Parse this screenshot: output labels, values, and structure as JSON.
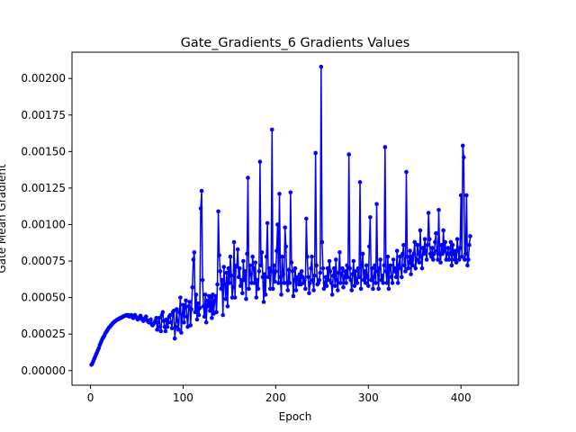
{
  "chart_data": {
    "type": "line",
    "title": "Gate_Gradients_6 Gradients Values",
    "xlabel": "Epoch",
    "ylabel": "Gate Mean Gradient",
    "xlim": [
      -20,
      462
    ],
    "ylim": [
      -0.0001,
      0.00218
    ],
    "x_ticks": [
      0,
      100,
      200,
      300,
      400
    ],
    "x_tick_labels": [
      "0",
      "100",
      "200",
      "300",
      "400"
    ],
    "y_ticks": [
      0.0,
      0.00025,
      0.0005,
      0.00075,
      0.001,
      0.00125,
      0.0015,
      0.00175,
      0.002
    ],
    "y_tick_labels": [
      "0.00000",
      "0.00025",
      "0.00050",
      "0.00075",
      "0.00100",
      "0.00125",
      "0.00150",
      "0.00175",
      "0.00200"
    ],
    "grid": false,
    "series": [
      {
        "color": "#0000ff",
        "marker": "circle",
        "x_start": 1,
        "x_step": 1,
        "values": [
          4e-05,
          5e-05,
          6.5e-05,
          8e-05,
          9.5e-05,
          0.00011,
          0.000125,
          0.00014,
          0.000155,
          0.000175,
          0.00019,
          0.000205,
          0.00022,
          0.00023,
          0.00024,
          0.000255,
          0.000265,
          0.000275,
          0.000285,
          0.000295,
          0.0003,
          0.00031,
          0.000315,
          0.000325,
          0.00033,
          0.000335,
          0.00034,
          0.000345,
          0.00035,
          0.000352,
          0.000355,
          0.00036,
          0.000362,
          0.000365,
          0.00037,
          0.000372,
          0.000375,
          0.000378,
          0.00038,
          0.000375,
          0.00038,
          0.00037,
          0.000375,
          0.00038,
          0.00037,
          0.00036,
          0.000375,
          0.00038,
          0.00037,
          0.00036,
          0.00035,
          0.000355,
          0.000365,
          0.000375,
          0.00036,
          0.00035,
          0.00034,
          0.00035,
          0.00036,
          0.00037,
          0.000345,
          0.000335,
          0.00033,
          0.00034,
          0.00035,
          0.00032,
          0.00031,
          0.00032,
          0.00033,
          0.00034,
          0.00036,
          0.00028,
          0.00033,
          0.00036,
          0.0003,
          0.00027,
          0.00038,
          0.0004,
          0.00034,
          0.0003,
          0.00027,
          0.00035,
          0.0003,
          0.00033,
          0.00037,
          0.00038,
          0.00033,
          0.00029,
          0.0004,
          0.00041,
          0.00022,
          0.0003,
          0.00042,
          0.00034,
          0.00028,
          0.0004,
          0.0005,
          0.00026,
          0.00038,
          0.00045,
          0.00033,
          0.00043,
          0.00048,
          0.00037,
          0.0003,
          0.00044,
          0.00047,
          0.00031,
          0.00042,
          0.00057,
          0.00076,
          0.00081,
          0.0004,
          0.00052,
          0.00035,
          0.00046,
          0.00038,
          0.00043,
          0.00111,
          0.00123,
          0.00062,
          0.00044,
          0.00037,
          0.00052,
          0.00033,
          0.00048,
          0.00044,
          0.00051,
          0.00041,
          0.0005,
          0.00036,
          0.00052,
          0.00039,
          0.00048,
          0.00051,
          0.0004,
          0.00059,
          0.00109,
          0.00079,
          0.00068,
          0.00056,
          0.00062,
          0.00038,
          0.00071,
          0.00059,
          0.00049,
          0.00067,
          0.00044,
          0.0007,
          0.0006,
          0.00078,
          0.00065,
          0.0005,
          0.00057,
          0.00088,
          0.0005,
          0.00071,
          0.00072,
          0.00083,
          0.00064,
          0.0007,
          0.00058,
          0.00062,
          0.00053,
          0.00075,
          0.00062,
          0.00068,
          0.00049,
          0.0008,
          0.00132,
          0.00056,
          0.00072,
          0.00066,
          0.0006,
          0.00078,
          0.0007,
          0.0006,
          0.00074,
          0.0005,
          0.00062,
          0.00056,
          0.00068,
          0.00143,
          0.00072,
          0.00081,
          0.00064,
          0.00047,
          0.00066,
          0.00052,
          0.00078,
          0.00101,
          0.00064,
          0.0007,
          0.00056,
          0.00068,
          0.00165,
          0.00056,
          0.00072,
          0.00061,
          0.00068,
          0.00082,
          0.001,
          0.0006,
          0.00121,
          0.00064,
          0.00052,
          0.00078,
          0.00066,
          0.0006,
          0.00098,
          0.00085,
          0.0006,
          0.00055,
          0.00069,
          0.0006,
          0.00122,
          0.00074,
          0.00068,
          0.00051,
          0.00062,
          0.0007,
          0.00055,
          0.00064,
          0.00062,
          0.00059,
          0.00066,
          0.00059,
          0.00068,
          0.00064,
          0.0006,
          0.00062,
          0.00056,
          0.00104,
          0.00078,
          0.00064,
          0.00053,
          0.0006,
          0.0007,
          0.00078,
          0.00062,
          0.00055,
          0.00065,
          0.00149,
          0.00072,
          0.00059,
          0.0006,
          0.00062,
          0.00067,
          0.00208,
          0.00088,
          0.0007,
          0.00056,
          0.0006,
          0.00064,
          0.00058,
          0.0007,
          0.00062,
          0.00075,
          0.00068,
          0.0006,
          0.00052,
          0.00065,
          0.0007,
          0.00058,
          0.00076,
          0.00062,
          0.00055,
          0.00067,
          0.00081,
          0.0006,
          0.00066,
          0.0007,
          0.00057,
          0.00064,
          0.00068,
          0.0006,
          0.00072,
          0.00064,
          0.00148,
          0.0007,
          0.00062,
          0.00055,
          0.00066,
          0.00075,
          0.00058,
          0.00068,
          0.00062,
          0.0006,
          0.0007,
          0.00064,
          0.00129,
          0.00056,
          0.00072,
          0.0008,
          0.00062,
          0.00068,
          0.0006,
          0.00072,
          0.00064,
          0.00058,
          0.00085,
          0.00105,
          0.00062,
          0.0007,
          0.00056,
          0.00064,
          0.00072,
          0.0006,
          0.00114,
          0.00068,
          0.00056,
          0.0007,
          0.00076,
          0.00062,
          0.00065,
          0.0006,
          0.00072,
          0.00153,
          0.00068,
          0.0006,
          0.00078,
          0.00056,
          0.0007,
          0.00072,
          0.00064,
          0.0006,
          0.00076,
          0.00068,
          0.0007,
          0.00064,
          0.00082,
          0.0006,
          0.00072,
          0.00078,
          0.0007,
          0.00064,
          0.0008,
          0.00086,
          0.00072,
          0.00068,
          0.00136,
          0.00078,
          0.0007,
          0.00074,
          0.00082,
          0.00066,
          0.00078,
          0.00072,
          0.0008,
          0.00088,
          0.0007,
          0.00076,
          0.00086,
          0.0008,
          0.00074,
          0.00096,
          0.00078,
          0.0007,
          0.00084,
          0.0008,
          0.0009,
          0.00082,
          0.00076,
          0.00086,
          0.00108,
          0.0009,
          0.0008,
          0.00078,
          0.00084,
          0.00076,
          0.0008,
          0.00088,
          0.00094,
          0.00082,
          0.00076,
          0.0011,
          0.0008,
          0.00074,
          0.00086,
          0.0008,
          0.00096,
          0.00082,
          0.00088,
          0.00076,
          0.0008,
          0.00084,
          0.00076,
          0.0008,
          0.00088,
          0.00072,
          0.00086,
          0.0008,
          0.00076,
          0.00082,
          0.00074,
          0.0009,
          0.00082,
          0.00076,
          0.00084,
          0.0012,
          0.00078,
          0.00154,
          0.00146,
          0.00076,
          0.0008,
          0.0012,
          0.00072,
          0.00076,
          0.00086,
          0.00092
        ]
      }
    ]
  }
}
